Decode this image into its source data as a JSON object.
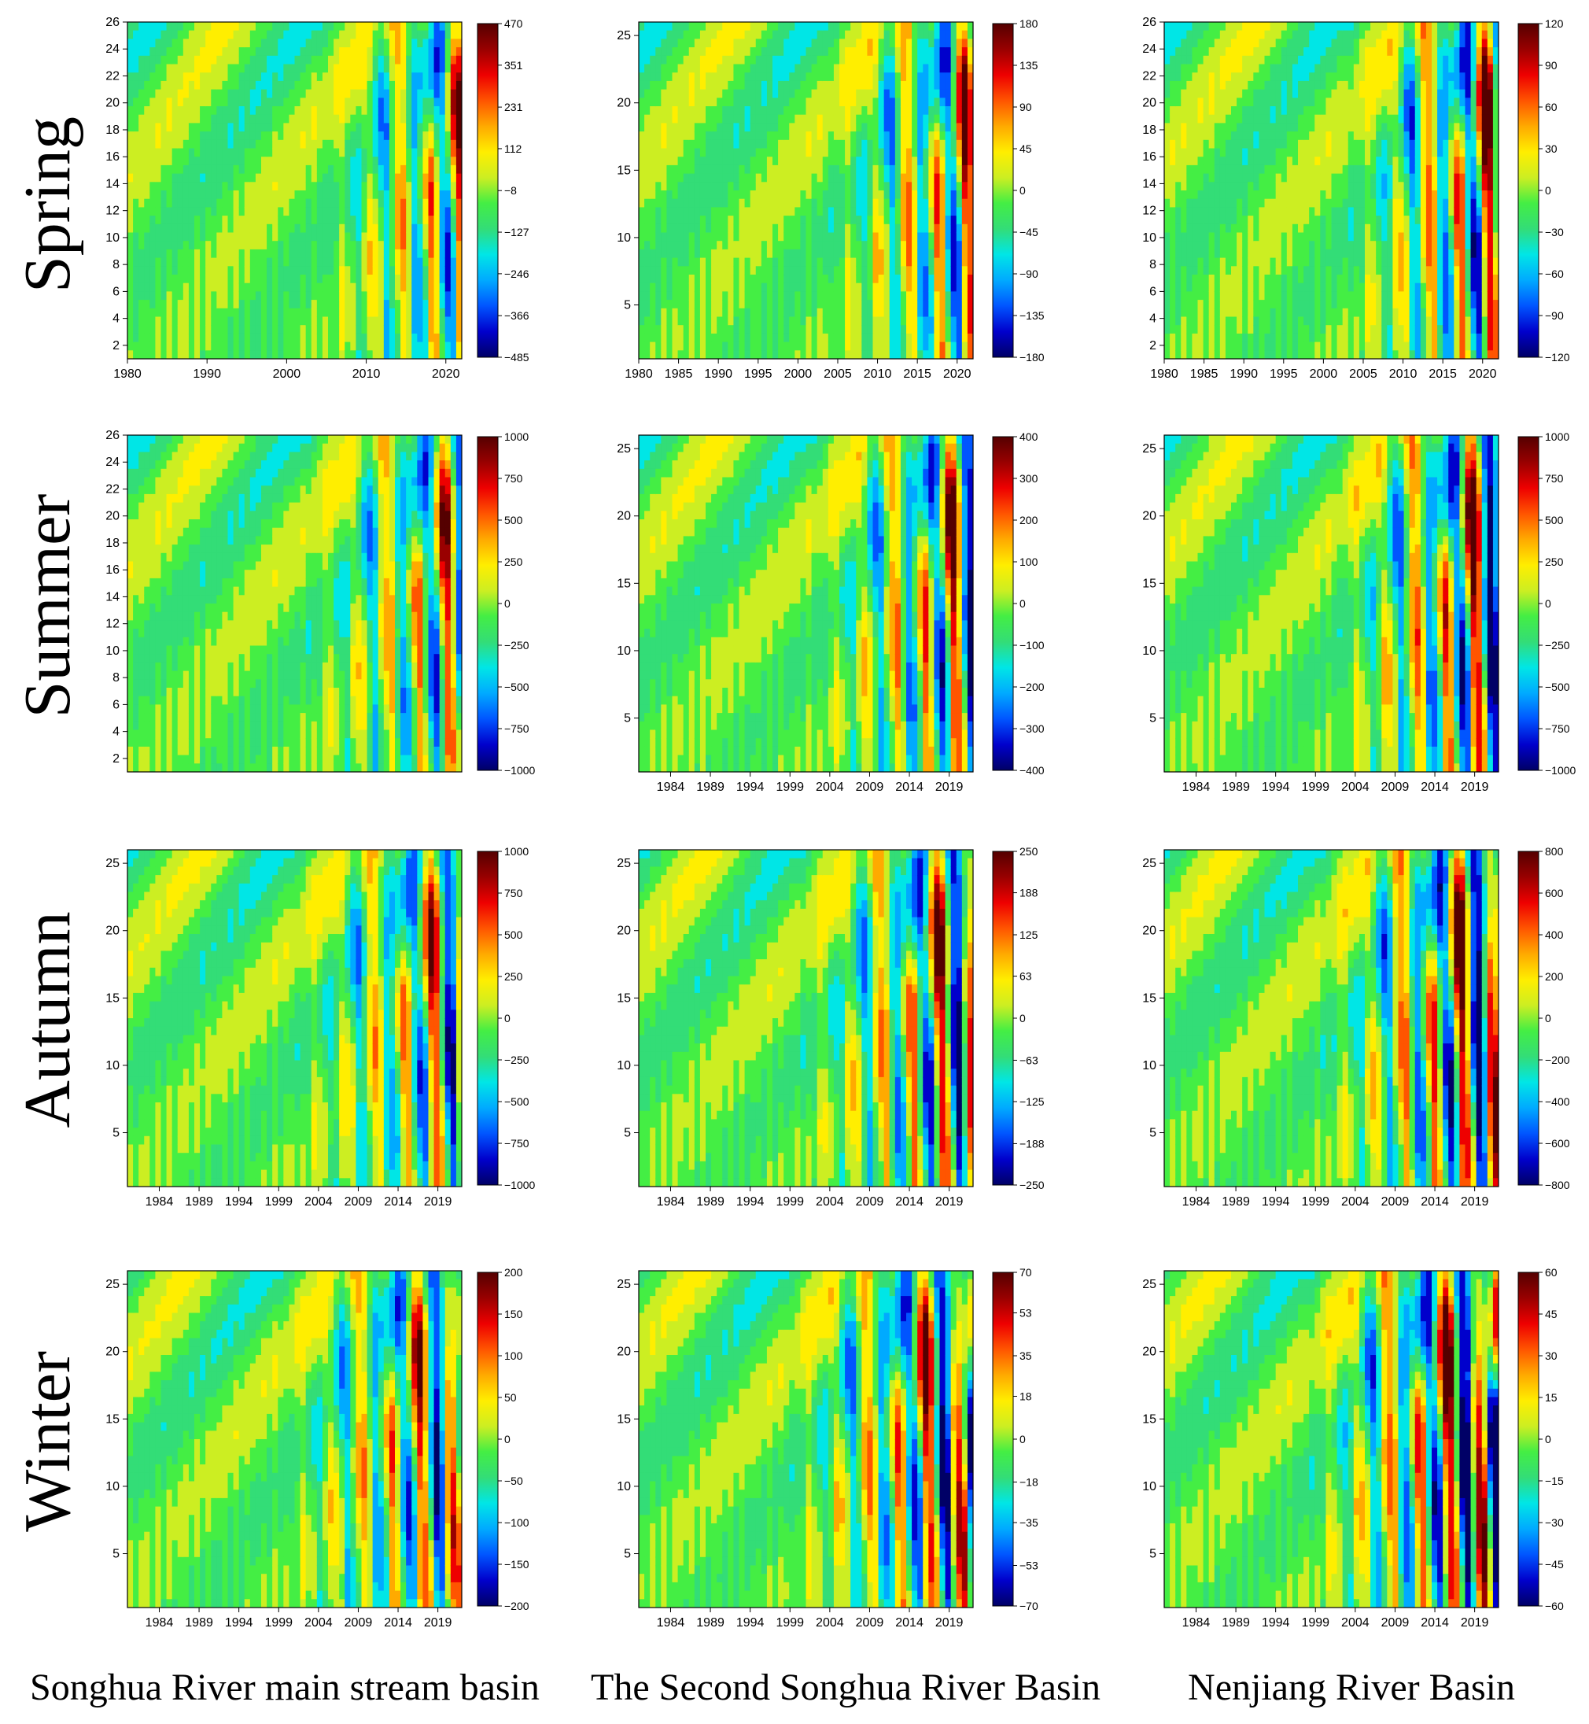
{
  "figure": {
    "row_labels": [
      "Spring",
      "Summer",
      "Autumn",
      "Winter"
    ],
    "column_labels": [
      "Songhua River main stream basin",
      "The Second Songhua River Basin",
      "Nenjiang River Basin"
    ]
  },
  "colormap": [
    "#000066",
    "#0000cc",
    "#0055ff",
    "#00aaff",
    "#00e6e6",
    "#33dd77",
    "#44ee44",
    "#ccee22",
    "#ffee00",
    "#ffaa00",
    "#ff5500",
    "#ee0000",
    "#990000",
    "#550000"
  ],
  "chart_data": [
    {
      "type": "heatmap",
      "season": "Spring",
      "basin": "Songhua River main stream basin",
      "xlim": [
        1980,
        2022
      ],
      "ylim": [
        1,
        26
      ],
      "xticks": [
        1980,
        1990,
        2000,
        2010,
        2020
      ],
      "xtick_labels": [
        "1980",
        "1990",
        "2000",
        "2010",
        "2020"
      ],
      "yticks": [
        2,
        4,
        6,
        8,
        10,
        12,
        14,
        16,
        18,
        20,
        22,
        24,
        26
      ],
      "ytick_labels": [
        "2",
        "4",
        "6",
        "8",
        "10",
        "12",
        "14",
        "16",
        "18",
        "20",
        "22",
        "24",
        "26"
      ],
      "colorbar": {
        "min": -485,
        "max": 470,
        "ticks": [
          470,
          351,
          231,
          112,
          -8,
          -127,
          -246,
          -366,
          -485
        ],
        "tick_labels": [
          "470",
          "351",
          "231",
          "112",
          "−8",
          "−127",
          "−246",
          "−366",
          "−485"
        ]
      }
    },
    {
      "type": "heatmap",
      "season": "Spring",
      "basin": "The Second Songhua River Basin",
      "xlim": [
        1980,
        2022
      ],
      "ylim": [
        1,
        26
      ],
      "xticks": [
        1980,
        1985,
        1990,
        1995,
        2000,
        2005,
        2010,
        2015,
        2020
      ],
      "xtick_labels": [
        "1980",
        "1985",
        "1990",
        "1995",
        "2000",
        "2005",
        "2010",
        "2015",
        "2020"
      ],
      "yticks": [
        5,
        10,
        15,
        20,
        25
      ],
      "ytick_labels": [
        "5",
        "10",
        "15",
        "20",
        "25"
      ],
      "colorbar": {
        "min": -180,
        "max": 180,
        "ticks": [
          180,
          135,
          90,
          45,
          0,
          -45,
          -90,
          -135,
          -180
        ],
        "tick_labels": [
          "180",
          "135",
          "90",
          "45",
          "0",
          "−45",
          "−90",
          "−135",
          "−180"
        ]
      }
    },
    {
      "type": "heatmap",
      "season": "Spring",
      "basin": "Nenjiang River Basin",
      "xlim": [
        1980,
        2022
      ],
      "ylim": [
        1,
        26
      ],
      "xticks": [
        1980,
        1985,
        1990,
        1995,
        2000,
        2005,
        2010,
        2015,
        2020
      ],
      "xtick_labels": [
        "1980",
        "1985",
        "1990",
        "1995",
        "2000",
        "2005",
        "2010",
        "2015",
        "2020"
      ],
      "yticks": [
        2,
        4,
        6,
        8,
        10,
        12,
        14,
        16,
        18,
        20,
        22,
        24,
        26
      ],
      "ytick_labels": [
        "2",
        "4",
        "6",
        "8",
        "10",
        "12",
        "14",
        "16",
        "18",
        "20",
        "22",
        "24",
        "26"
      ],
      "colorbar": {
        "min": -120,
        "max": 120,
        "ticks": [
          120,
          90,
          60,
          30,
          0,
          -30,
          -60,
          -90,
          -120
        ],
        "tick_labels": [
          "120",
          "90",
          "60",
          "30",
          "0",
          "−30",
          "−60",
          "−90",
          "−120"
        ]
      }
    },
    {
      "type": "heatmap",
      "season": "Summer",
      "basin": "Songhua River main stream basin",
      "xlim": [
        1980,
        2022
      ],
      "ylim": [
        1,
        26
      ],
      "xticks": [],
      "xtick_labels": [],
      "yticks": [
        2,
        4,
        6,
        8,
        10,
        12,
        14,
        16,
        18,
        20,
        22,
        24,
        26
      ],
      "ytick_labels": [
        "2",
        "4",
        "6",
        "8",
        "10",
        "12",
        "14",
        "16",
        "18",
        "20",
        "22",
        "24",
        "26"
      ],
      "colorbar": {
        "min": -1000,
        "max": 1000,
        "ticks": [
          1000,
          750,
          500,
          250,
          0,
          -250,
          -500,
          -750,
          -1000
        ],
        "tick_labels": [
          "1000",
          "750",
          "500",
          "250",
          "0",
          "−250",
          "−500",
          "−750",
          "−1000"
        ]
      }
    },
    {
      "type": "heatmap",
      "season": "Summer",
      "basin": "The Second Songhua River Basin",
      "xlim": [
        1980,
        2022
      ],
      "ylim": [
        1,
        26
      ],
      "xticks": [
        1984,
        1989,
        1994,
        1999,
        2004,
        2009,
        2014,
        2019
      ],
      "xtick_labels": [
        "1984",
        "1989",
        "1994",
        "1999",
        "2004",
        "2009",
        "2014",
        "2019"
      ],
      "yticks": [
        5,
        10,
        15,
        20,
        25
      ],
      "ytick_labels": [
        "5",
        "10",
        "15",
        "20",
        "25"
      ],
      "colorbar": {
        "min": -400,
        "max": 400,
        "ticks": [
          400,
          300,
          200,
          100,
          0,
          -100,
          -200,
          -300,
          -400
        ],
        "tick_labels": [
          "400",
          "300",
          "200",
          "100",
          "0",
          "−100",
          "−200",
          "−300",
          "−400"
        ]
      }
    },
    {
      "type": "heatmap",
      "season": "Summer",
      "basin": "Nenjiang River Basin",
      "xlim": [
        1980,
        2022
      ],
      "ylim": [
        1,
        26
      ],
      "xticks": [
        1984,
        1989,
        1994,
        1999,
        2004,
        2009,
        2014,
        2019
      ],
      "xtick_labels": [
        "1984",
        "1989",
        "1994",
        "1999",
        "2004",
        "2009",
        "2014",
        "2019"
      ],
      "yticks": [
        5,
        10,
        15,
        20,
        25
      ],
      "ytick_labels": [
        "5",
        "10",
        "15",
        "20",
        "25"
      ],
      "colorbar": {
        "min": -1000,
        "max": 1000,
        "ticks": [
          1000,
          750,
          500,
          250,
          0,
          -250,
          -500,
          -750,
          -1000
        ],
        "tick_labels": [
          "1000",
          "750",
          "500",
          "250",
          "0",
          "−250",
          "−500",
          "−750",
          "−1000"
        ]
      }
    },
    {
      "type": "heatmap",
      "season": "Autumn",
      "basin": "Songhua River main stream basin",
      "xlim": [
        1980,
        2022
      ],
      "ylim": [
        1,
        26
      ],
      "xticks": [
        1984,
        1989,
        1994,
        1999,
        2004,
        2009,
        2014,
        2019
      ],
      "xtick_labels": [
        "1984",
        "1989",
        "1994",
        "1999",
        "2004",
        "2009",
        "2014",
        "2019"
      ],
      "yticks": [
        5,
        10,
        15,
        20,
        25
      ],
      "ytick_labels": [
        "5",
        "10",
        "15",
        "20",
        "25"
      ],
      "colorbar": {
        "min": -1000,
        "max": 1000,
        "ticks": [
          1000,
          750,
          500,
          250,
          0,
          -250,
          -500,
          -750,
          -1000
        ],
        "tick_labels": [
          "1000",
          "750",
          "500",
          "250",
          "0",
          "−250",
          "−500",
          "−750",
          "−1000"
        ]
      }
    },
    {
      "type": "heatmap",
      "season": "Autumn",
      "basin": "The Second Songhua River Basin",
      "xlim": [
        1980,
        2022
      ],
      "ylim": [
        1,
        26
      ],
      "xticks": [
        1984,
        1989,
        1994,
        1999,
        2004,
        2009,
        2014,
        2019
      ],
      "xtick_labels": [
        "1984",
        "1989",
        "1994",
        "1999",
        "2004",
        "2009",
        "2014",
        "2019"
      ],
      "yticks": [
        5,
        10,
        15,
        20,
        25
      ],
      "ytick_labels": [
        "5",
        "10",
        "15",
        "20",
        "25"
      ],
      "colorbar": {
        "min": -250,
        "max": 250,
        "ticks": [
          250,
          188,
          125,
          63,
          0,
          -63,
          -125,
          -188,
          -250
        ],
        "tick_labels": [
          "250",
          "188",
          "125",
          "63",
          "0",
          "−63",
          "−125",
          "−188",
          "−250"
        ]
      }
    },
    {
      "type": "heatmap",
      "season": "Autumn",
      "basin": "Nenjiang River Basin",
      "xlim": [
        1980,
        2022
      ],
      "ylim": [
        1,
        26
      ],
      "xticks": [
        1984,
        1989,
        1994,
        1999,
        2004,
        2009,
        2014,
        2019
      ],
      "xtick_labels": [
        "1984",
        "1989",
        "1994",
        "1999",
        "2004",
        "2009",
        "2014",
        "2019"
      ],
      "yticks": [
        5,
        10,
        15,
        20,
        25
      ],
      "ytick_labels": [
        "5",
        "10",
        "15",
        "20",
        "25"
      ],
      "colorbar": {
        "min": -800,
        "max": 800,
        "ticks": [
          800,
          600,
          400,
          200,
          0,
          -200,
          -400,
          -600,
          -800
        ],
        "tick_labels": [
          "800",
          "600",
          "400",
          "200",
          "0",
          "−200",
          "−400",
          "−600",
          "−800"
        ]
      }
    },
    {
      "type": "heatmap",
      "season": "Winter",
      "basin": "Songhua River main stream basin",
      "xlim": [
        1980,
        2022
      ],
      "ylim": [
        1,
        26
      ],
      "xticks": [
        1984,
        1989,
        1994,
        1999,
        2004,
        2009,
        2014,
        2019
      ],
      "xtick_labels": [
        "1984",
        "1989",
        "1994",
        "1999",
        "2004",
        "2009",
        "2014",
        "2019"
      ],
      "yticks": [
        5,
        10,
        15,
        20,
        25
      ],
      "ytick_labels": [
        "5",
        "10",
        "15",
        "20",
        "25"
      ],
      "colorbar": {
        "min": -200,
        "max": 200,
        "ticks": [
          200,
          150,
          100,
          50,
          0,
          -50,
          -100,
          -150,
          -200
        ],
        "tick_labels": [
          "200",
          "150",
          "100",
          "50",
          "0",
          "−50",
          "−100",
          "−150",
          "−200"
        ]
      }
    },
    {
      "type": "heatmap",
      "season": "Winter",
      "basin": "The Second Songhua River Basin",
      "xlim": [
        1980,
        2022
      ],
      "ylim": [
        1,
        26
      ],
      "xticks": [
        1984,
        1989,
        1994,
        1999,
        2004,
        2009,
        2014,
        2019
      ],
      "xtick_labels": [
        "1984",
        "1989",
        "1994",
        "1999",
        "2004",
        "2009",
        "2014",
        "2019"
      ],
      "yticks": [
        5,
        10,
        15,
        20,
        25
      ],
      "ytick_labels": [
        "5",
        "10",
        "15",
        "20",
        "25"
      ],
      "colorbar": {
        "min": -70,
        "max": 70,
        "ticks": [
          70,
          53,
          35,
          18,
          0,
          -18,
          -35,
          -53,
          -70
        ],
        "tick_labels": [
          "70",
          "53",
          "35",
          "18",
          "0",
          "−18",
          "−35",
          "−53",
          "−70"
        ]
      }
    },
    {
      "type": "heatmap",
      "season": "Winter",
      "basin": "Nenjiang River Basin",
      "xlim": [
        1980,
        2022
      ],
      "ylim": [
        1,
        26
      ],
      "xticks": [
        1984,
        1989,
        1994,
        1999,
        2004,
        2009,
        2014,
        2019
      ],
      "xtick_labels": [
        "1984",
        "1989",
        "1994",
        "1999",
        "2004",
        "2009",
        "2014",
        "2019"
      ],
      "yticks": [
        5,
        10,
        15,
        20,
        25
      ],
      "ytick_labels": [
        "5",
        "10",
        "15",
        "20",
        "25"
      ],
      "colorbar": {
        "min": -60,
        "max": 60,
        "ticks": [
          60,
          45,
          30,
          15,
          0,
          -15,
          -30,
          -45,
          -60
        ],
        "tick_labels": [
          "60",
          "45",
          "30",
          "15",
          "0",
          "−15",
          "−30",
          "−45",
          "−60"
        ]
      }
    }
  ]
}
